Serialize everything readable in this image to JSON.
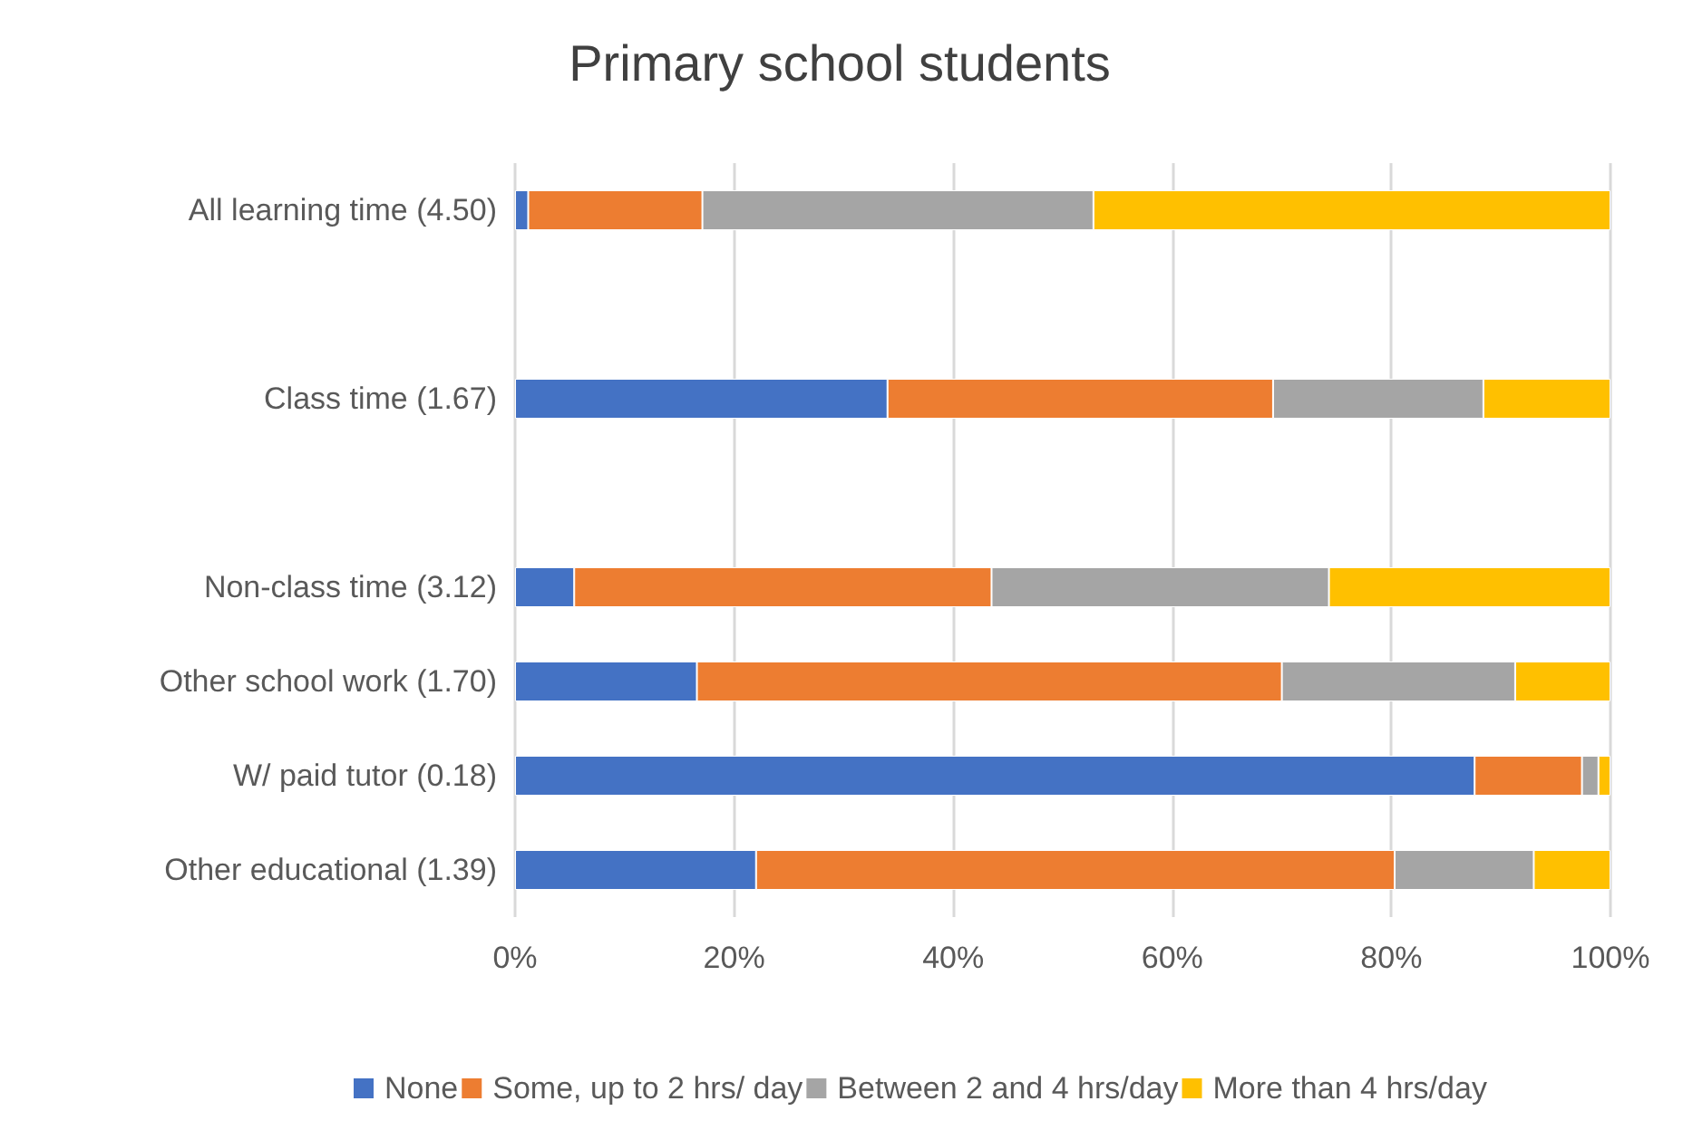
{
  "chart_data": {
    "type": "bar",
    "orientation": "horizontal",
    "stacked": true,
    "title": "Primary school students",
    "categories": [
      "All learning time (4.50)",
      null,
      "Class time (1.67)",
      null,
      "Non-class time (3.12)",
      "Other school work (1.70)",
      "W/ paid tutor (0.18)",
      "Other educational (1.39)"
    ],
    "series": [
      {
        "name": "None",
        "color": "#4472c4",
        "values": [
          1.2,
          null,
          34.0,
          null,
          5.4,
          16.6,
          87.6,
          22.0
        ]
      },
      {
        "name": "Some, up to 2 hrs/ day",
        "color": "#ed7d31",
        "values": [
          15.9,
          null,
          35.2,
          null,
          38.1,
          53.4,
          9.8,
          58.3
        ]
      },
      {
        "name": "Between 2 and 4 hrs/day",
        "color": "#a5a5a5",
        "values": [
          35.7,
          null,
          19.2,
          null,
          30.8,
          21.3,
          1.5,
          12.7
        ]
      },
      {
        "name": "More than 4 hrs/day",
        "color": "#ffc000",
        "values": [
          47.2,
          null,
          11.6,
          null,
          25.7,
          8.7,
          1.1,
          7.0
        ]
      }
    ],
    "xlim": [
      0,
      100
    ],
    "xticks": [
      {
        "value": 0,
        "label": "0%"
      },
      {
        "value": 20,
        "label": "20%"
      },
      {
        "value": 40,
        "label": "40%"
      },
      {
        "value": 60,
        "label": "60%"
      },
      {
        "value": 80,
        "label": "80%"
      },
      {
        "value": 100,
        "label": "100%"
      }
    ],
    "grid": "x",
    "legend": "bottom"
  }
}
